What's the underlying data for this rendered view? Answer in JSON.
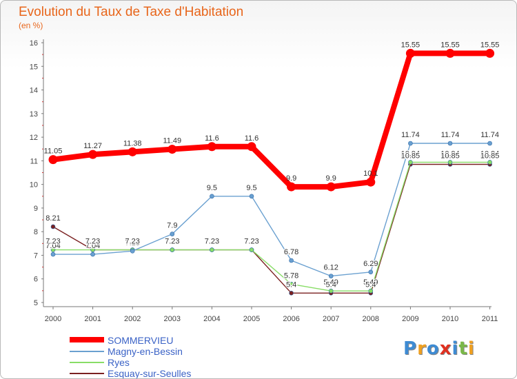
{
  "title": "Evolution du Taux de Taxe d'Habitation",
  "unit": "(en %)",
  "logo": {
    "text": "Proxiti",
    "letters": [
      {
        "ch": "P",
        "color": "#3e8bd3"
      },
      {
        "ch": "r",
        "color": "#f0a020"
      },
      {
        "ch": "o",
        "color": "#3e8bd3"
      },
      {
        "ch": "x",
        "color": "#e03020"
      },
      {
        "ch": "i",
        "color": "#3e8bd3"
      },
      {
        "ch": "t",
        "color": "#7ab848"
      },
      {
        "ch": "i",
        "color": "#f0a020"
      }
    ]
  },
  "chart_data": {
    "type": "line",
    "title": "Evolution du Taux de Taxe d'Habitation",
    "ylabel": "(en %)",
    "xlabel": "",
    "ylim": [
      5,
      16
    ],
    "yticks": [
      5,
      6,
      7,
      8,
      9,
      10,
      11,
      12,
      13,
      14,
      15,
      16
    ],
    "grid": false,
    "legend": "bottom-left",
    "categories": [
      "2000",
      "2001",
      "2002",
      "2003",
      "2004",
      "2005",
      "2006",
      "2007",
      "2008",
      "2009",
      "2010",
      "2011"
    ],
    "series": [
      {
        "name": "SOMMERVIEU",
        "color": "#ff0000",
        "values": [
          11.05,
          11.27,
          11.38,
          11.49,
          11.6,
          11.6,
          9.9,
          9.9,
          10.1,
          15.55,
          15.55,
          15.55
        ],
        "labels": [
          "11.05",
          "11.27",
          "11.38",
          "11.49",
          "11.6",
          "11.6",
          "9.9",
          "9.9",
          "10.1",
          "15.55",
          "15.55",
          "15.55"
        ]
      },
      {
        "name": "Magny-en-Bessin",
        "color": "#6aa0d0",
        "values": [
          7.04,
          7.04,
          7.18,
          7.9,
          9.5,
          9.5,
          6.78,
          6.12,
          6.29,
          11.74,
          11.74,
          11.74
        ],
        "labels": [
          "7.04",
          "7.04",
          "7.18",
          "7.9",
          "9.5",
          "9.5",
          "6.78",
          "6.12",
          "6.29",
          "11.74",
          "11.74",
          "11.74"
        ]
      },
      {
        "name": "Ryes",
        "color": "#88dd66",
        "values": [
          7.23,
          7.23,
          7.23,
          7.23,
          7.23,
          7.23,
          5.78,
          5.49,
          5.49,
          10.94,
          10.94,
          10.94
        ],
        "labels": [
          "7.23",
          "7.23",
          "7.23",
          "7.23",
          "7.23",
          "7.23",
          "5.78",
          "5.49",
          "5.49",
          "10.94",
          "10.94",
          "10.94"
        ]
      },
      {
        "name": "Esquay-sur-Seulles",
        "color": "#7a2020",
        "values": [
          8.21,
          7.23,
          7.23,
          7.23,
          7.23,
          7.23,
          5.4,
          5.4,
          5.4,
          10.85,
          10.85,
          10.85
        ],
        "labels": [
          "8.21",
          "7.23",
          "7.23",
          "7.23",
          "7.23",
          "7.23",
          "5.4",
          "5.4",
          "5.4",
          "10.85",
          "10.85",
          "10.85"
        ]
      }
    ]
  }
}
